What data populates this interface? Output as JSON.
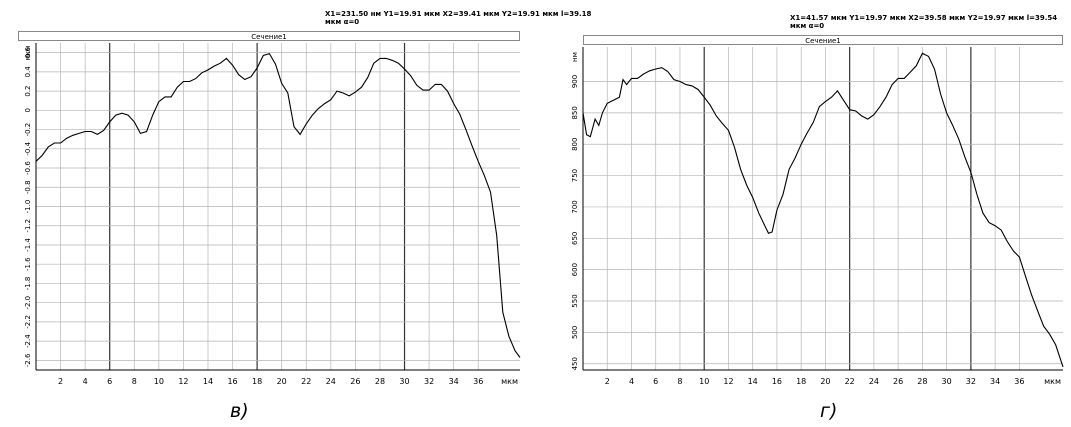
{
  "panels": [
    {
      "info_line1": "X1=231.50 нм Y1=19.91 мкм X2=39.41 мкм Y2=19.91 мкм l=39.18",
      "info_line2": "мкм α=0",
      "section_title": "Сечение1",
      "caption": "в)"
    },
    {
      "info_line1": "X1=41.57 мкм Y1=19.97 мкм X2=39.58 мкм Y2=19.97 мкм l=39.54",
      "info_line2": "мкм α=0",
      "section_title": "Сечение1",
      "caption": "г)"
    }
  ],
  "chart_data": [
    {
      "type": "line",
      "title": "Сечение1",
      "xlabel": "мкм",
      "ylabel": "мкм",
      "xlim": [
        0,
        39.4
      ],
      "ylim": [
        -2.7,
        0.7
      ],
      "x_ticks": [
        2,
        4,
        6,
        8,
        10,
        12,
        14,
        16,
        18,
        20,
        22,
        24,
        26,
        28,
        30,
        32,
        34,
        36
      ],
      "y_ticks": [
        0.6,
        0.4,
        0.2,
        0,
        -0.2,
        -0.4,
        -0.6,
        -0.8,
        -1.0,
        -1.2,
        -1.4,
        -1.6,
        -1.8,
        -2.0,
        -2.2,
        -2.4,
        -2.6
      ],
      "x_tick_labels": [
        "2",
        "4",
        "6",
        "8",
        "10",
        "12",
        "14",
        "16",
        "18",
        "20",
        "22",
        "24",
        "26",
        "28",
        "30",
        "32",
        "34",
        "36"
      ],
      "y_tick_labels": [
        "0.6",
        "0.4",
        "0.2",
        "0",
        "-0.2",
        "-0.4",
        "-0.6",
        "-0.8",
        "-1.0",
        "-1.2",
        "-1.4",
        "-1.6",
        "-1.8",
        "-2.0",
        "-2.2",
        "-2.4",
        "-2.6"
      ],
      "grid": true,
      "bold_x_lines": [
        6,
        18,
        30
      ],
      "series": [
        {
          "x": [
            0,
            0.5,
            1,
            1.5,
            2,
            2.5,
            3,
            3.5,
            4,
            4.5,
            5,
            5.5,
            6,
            6.5,
            7,
            7.5,
            8,
            8.5,
            9,
            9.5,
            10,
            10.5,
            11,
            11.5,
            12,
            12.5,
            13,
            13.5,
            14,
            14.5,
            15,
            15.5,
            16,
            16.5,
            17,
            17.5,
            18,
            18.5,
            19,
            19.5,
            20,
            20.5,
            21,
            21.5,
            22,
            22.5,
            23,
            23.5,
            24,
            24.5,
            25,
            25.5,
            26,
            26.5,
            27,
            27.5,
            28,
            28.5,
            29,
            29.5,
            30,
            30.5,
            31,
            31.5,
            32,
            32.5,
            33,
            33.5,
            34,
            34.5,
            35,
            35.5,
            36,
            36.5,
            37,
            37.5,
            38,
            38.5,
            39,
            39.4
          ],
          "y": [
            -0.53,
            -0.47,
            -0.38,
            -0.34,
            -0.34,
            -0.29,
            -0.26,
            -0.24,
            -0.22,
            -0.22,
            -0.25,
            -0.21,
            -0.12,
            -0.05,
            -0.03,
            -0.05,
            -0.12,
            -0.24,
            -0.22,
            -0.05,
            0.09,
            0.14,
            0.14,
            0.24,
            0.3,
            0.3,
            0.33,
            0.39,
            0.42,
            0.46,
            0.49,
            0.54,
            0.47,
            0.37,
            0.32,
            0.35,
            0.44,
            0.57,
            0.59,
            0.48,
            0.28,
            0.18,
            -0.17,
            -0.25,
            -0.14,
            -0.05,
            0.02,
            0.07,
            0.11,
            0.2,
            0.18,
            0.15,
            0.19,
            0.24,
            0.34,
            0.49,
            0.54,
            0.54,
            0.52,
            0.49,
            0.43,
            0.36,
            0.26,
            0.21,
            0.21,
            0.27,
            0.27,
            0.2,
            0.07,
            -0.04,
            -0.2,
            -0.37,
            -0.53,
            -0.68,
            -0.85,
            -1.3,
            -2.1,
            -2.35,
            -2.5,
            -2.57
          ]
        }
      ]
    },
    {
      "type": "line",
      "title": "Сечение1",
      "xlabel": "мкм",
      "ylabel": "нм",
      "xlim": [
        0,
        39.6
      ],
      "ylim": [
        440,
        955
      ],
      "x_ticks": [
        2,
        4,
        6,
        8,
        10,
        12,
        14,
        16,
        18,
        20,
        22,
        24,
        26,
        28,
        30,
        32,
        34,
        36
      ],
      "y_ticks": [
        450,
        500,
        550,
        600,
        650,
        700,
        750,
        800,
        850,
        900
      ],
      "x_tick_labels": [
        "2",
        "4",
        "6",
        "8",
        "10",
        "12",
        "14",
        "16",
        "18",
        "20",
        "22",
        "24",
        "26",
        "28",
        "30",
        "32",
        "34",
        "36"
      ],
      "y_tick_labels": [
        "450",
        "500",
        "550",
        "600",
        "650",
        "700",
        "750",
        "800",
        "850",
        "900"
      ],
      "grid": true,
      "bold_x_lines": [
        10,
        22,
        32
      ],
      "series": [
        {
          "x": [
            0,
            0.3,
            0.6,
            1,
            1.3,
            1.6,
            2,
            2.5,
            3,
            3.3,
            3.6,
            4,
            4.5,
            5,
            5.5,
            6,
            6.5,
            7,
            7.5,
            8,
            8.5,
            9,
            9.5,
            10,
            10.5,
            11,
            11.5,
            12,
            12.5,
            13,
            13.5,
            14,
            14.5,
            15,
            15.3,
            15.6,
            16,
            16.5,
            17,
            17.5,
            18,
            18.5,
            19,
            19.5,
            20,
            20.5,
            21,
            21.5,
            22,
            22.5,
            23,
            23.5,
            24,
            24.5,
            25,
            25.5,
            26,
            26.5,
            27,
            27.5,
            28,
            28.5,
            29,
            29.5,
            30,
            30.5,
            31,
            31.5,
            32,
            32.5,
            33,
            33.5,
            34,
            34.5,
            35,
            35.5,
            36,
            36.5,
            37,
            37.5,
            38,
            38.5,
            39,
            39.6
          ],
          "y": [
            850,
            815,
            812,
            840,
            830,
            850,
            865,
            870,
            875,
            903,
            895,
            905,
            905,
            912,
            917,
            920,
            922,
            916,
            903,
            900,
            895,
            893,
            887,
            875,
            862,
            845,
            833,
            822,
            795,
            760,
            735,
            715,
            690,
            670,
            658,
            660,
            695,
            720,
            760,
            778,
            800,
            818,
            835,
            860,
            868,
            875,
            885,
            870,
            855,
            853,
            845,
            840,
            847,
            860,
            875,
            895,
            905,
            905,
            915,
            925,
            945,
            940,
            920,
            880,
            850,
            830,
            808,
            780,
            755,
            720,
            690,
            675,
            670,
            663,
            645,
            630,
            620,
            590,
            560,
            535,
            510,
            497,
            480,
            445
          ]
        }
      ]
    }
  ]
}
